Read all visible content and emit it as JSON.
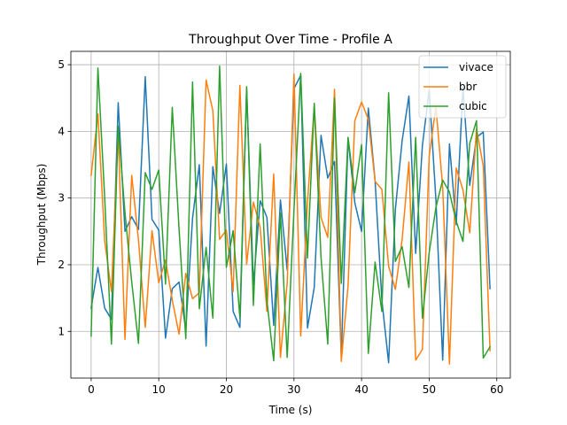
{
  "chart_data": {
    "type": "line",
    "title": "Throughput Over Time - Profile A",
    "xlabel": "Time (s)",
    "ylabel": "Throughput (Mbps)",
    "xlim": [
      -3,
      62
    ],
    "ylim": [
      0.3,
      5.2
    ],
    "xticks": [
      0,
      10,
      20,
      30,
      40,
      50,
      60
    ],
    "yticks": [
      1,
      2,
      3,
      4,
      5
    ],
    "grid": true,
    "legend": "top-right",
    "x": [
      0,
      1,
      2,
      3,
      4,
      5,
      6,
      7,
      8,
      9,
      10,
      11,
      12,
      13,
      14,
      15,
      16,
      17,
      18,
      19,
      20,
      21,
      22,
      23,
      24,
      25,
      26,
      27,
      28,
      29,
      30,
      31,
      32,
      33,
      34,
      35,
      36,
      37,
      38,
      39,
      40,
      41,
      42,
      43,
      44,
      45,
      46,
      47,
      48,
      49,
      50,
      51,
      52,
      53,
      54,
      55,
      56,
      57,
      58,
      59
    ],
    "series": [
      {
        "name": "vivace",
        "color": "#1f77b4",
        "values": [
          1.35,
          1.96,
          1.35,
          1.18,
          4.43,
          2.5,
          2.72,
          2.53,
          4.82,
          2.68,
          2.52,
          0.9,
          1.64,
          1.74,
          1.02,
          2.7,
          3.5,
          0.78,
          3.47,
          2.77,
          3.51,
          1.3,
          1.06,
          4.63,
          1.7,
          2.96,
          2.71,
          1.09,
          2.97,
          1.92,
          4.64,
          4.84,
          1.05,
          1.66,
          3.94,
          3.3,
          3.55,
          0.62,
          3.89,
          2.93,
          2.5,
          4.35,
          3.26,
          1.47,
          0.53,
          2.83,
          3.86,
          4.53,
          2.17,
          3.79,
          4.62,
          2.97,
          0.57,
          3.81,
          2.6,
          4.66,
          3.19,
          3.91,
          3.99,
          1.64
        ]
      },
      {
        "name": "bbr",
        "color": "#ff7f0e",
        "values": [
          3.34,
          4.26,
          2.36,
          1.6,
          3.99,
          0.88,
          3.34,
          2.37,
          1.06,
          2.51,
          1.73,
          2.07,
          1.47,
          0.96,
          1.87,
          1.49,
          1.58,
          4.77,
          4.31,
          2.38,
          2.52,
          1.6,
          4.69,
          2.01,
          2.94,
          2.56,
          1.3,
          3.36,
          0.61,
          1.73,
          4.86,
          0.93,
          2.94,
          4.38,
          2.71,
          2.41,
          4.63,
          0.55,
          1.68,
          4.16,
          4.44,
          4.18,
          3.25,
          3.13,
          1.98,
          1.63,
          2.38,
          3.54,
          0.57,
          0.73,
          3.63,
          4.37,
          3.16,
          0.51,
          3.45,
          3.12,
          2.48,
          4.04,
          3.48,
          0.71
        ]
      },
      {
        "name": "cubic",
        "color": "#2ca02c",
        "values": [
          0.93,
          4.95,
          3.01,
          0.81,
          4.08,
          2.78,
          1.74,
          0.82,
          3.38,
          3.13,
          3.42,
          1.71,
          4.36,
          2.54,
          0.89,
          4.74,
          1.34,
          2.26,
          1.2,
          4.98,
          1.96,
          2.51,
          1.2,
          4.67,
          1.39,
          3.81,
          1.46,
          0.56,
          2.78,
          0.61,
          2.82,
          4.87,
          2.1,
          4.42,
          2.11,
          0.81,
          4.5,
          1.72,
          3.91,
          3.08,
          3.8,
          0.67,
          2.04,
          1.3,
          4.58,
          2.05,
          2.27,
          1.66,
          3.91,
          1.2,
          2.18,
          2.86,
          3.27,
          3.09,
          2.65,
          2.35,
          3.82,
          4.16,
          0.6,
          0.77
        ]
      }
    ]
  }
}
